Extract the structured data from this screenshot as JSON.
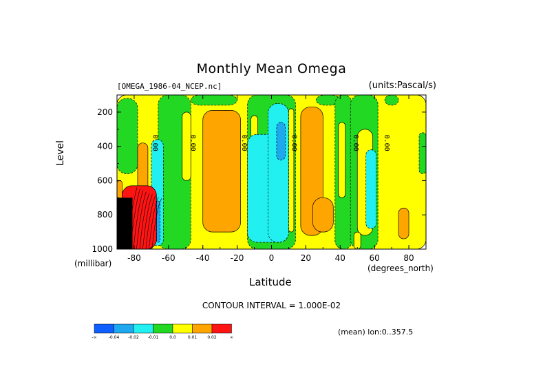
{
  "chart_data": {
    "type": "heatmap",
    "title": "Monthly Mean Omega",
    "file_label": "[OMEGA_1986-04_NCEP.nc]",
    "units_label": "(units:Pascal/s)",
    "xlabel": "Latitude",
    "x_unit_label": "(degrees_north)",
    "ylabel": "Level",
    "y_unit_label": "(millibar)",
    "x_ticks": [
      "-80",
      "-60",
      "-40",
      "-20",
      "0",
      "20",
      "40",
      "60",
      "80"
    ],
    "x_tick_values": [
      -80,
      -60,
      -40,
      -20,
      0,
      20,
      40,
      60,
      80
    ],
    "y_ticks": [
      "200",
      "400",
      "600",
      "800",
      "1000"
    ],
    "y_tick_values": [
      200,
      400,
      600,
      800,
      1000
    ],
    "xlim": [
      -90,
      90
    ],
    "ylim": [
      1000,
      100
    ],
    "y_reversed": true,
    "contour_interval_label": "CONTOUR INTERVAL = 1.000E-02",
    "mean_label": "(mean) lon:0..357.5",
    "contour_labels": [
      "0.00",
      "0.00",
      "0.00",
      "0.00",
      "0.00",
      "0.00"
    ],
    "colorbar": {
      "colors": [
        "#0f5fff",
        "#1ea8f0",
        "#22f0f0",
        "#22d822",
        "#ffff00",
        "#ffa500",
        "#ff1414"
      ],
      "labels": [
        "-∞",
        "-0.04",
        "-0.02",
        "-0.01",
        "0.0",
        "0.01",
        "0.02",
        "∞"
      ]
    },
    "regions": [
      {
        "category": 4,
        "lat": [
          -90,
          90
        ],
        "lev": [
          1000,
          100
        ]
      },
      {
        "category": 3,
        "lat": [
          -66,
          -47
        ],
        "lev": [
          1000,
          100
        ]
      },
      {
        "category": 3,
        "lat": [
          -90,
          -78
        ],
        "lev": [
          560,
          120
        ]
      },
      {
        "category": 3,
        "lat": [
          -47,
          -20
        ],
        "lev": [
          160,
          100
        ]
      },
      {
        "category": 3,
        "lat": [
          -14,
          14
        ],
        "lev": [
          1000,
          100
        ]
      },
      {
        "category": 3,
        "lat": [
          26,
          40
        ],
        "lev": [
          160,
          100
        ]
      },
      {
        "category": 3,
        "lat": [
          37,
          47
        ],
        "lev": [
          1000,
          100
        ]
      },
      {
        "category": 3,
        "lat": [
          46,
          62
        ],
        "lev": [
          1000,
          100
        ]
      },
      {
        "category": 3,
        "lat": [
          66,
          74
        ],
        "lev": [
          160,
          100
        ]
      },
      {
        "category": 3,
        "lat": [
          86,
          90
        ],
        "lev": [
          560,
          320
        ]
      },
      {
        "category": 4,
        "lat": [
          -52,
          -47
        ],
        "lev": [
          600,
          200
        ]
      },
      {
        "category": 4,
        "lat": [
          -12,
          -8
        ],
        "lev": [
          950,
          220
        ]
      },
      {
        "category": 4,
        "lat": [
          10,
          13
        ],
        "lev": [
          900,
          180
        ]
      },
      {
        "category": 4,
        "lat": [
          39,
          43
        ],
        "lev": [
          700,
          260
        ]
      },
      {
        "category": 4,
        "lat": [
          50,
          59
        ],
        "lev": [
          920,
          300
        ]
      },
      {
        "category": 4,
        "lat": [
          48,
          52
        ],
        "lev": [
          1000,
          900
        ]
      },
      {
        "category": 5,
        "lat": [
          -78,
          -72
        ],
        "lev": [
          920,
          380
        ]
      },
      {
        "category": 5,
        "lat": [
          -40,
          -18
        ],
        "lev": [
          900,
          190
        ]
      },
      {
        "category": 5,
        "lat": [
          17,
          30
        ],
        "lev": [
          920,
          170
        ]
      },
      {
        "category": 5,
        "lat": [
          24,
          36
        ],
        "lev": [
          900,
          700
        ]
      },
      {
        "category": 5,
        "lat": [
          74,
          80
        ],
        "lev": [
          940,
          760
        ]
      },
      {
        "category": 2,
        "lat": [
          -70,
          -63
        ],
        "lev": [
          980,
          360
        ]
      },
      {
        "category": 2,
        "lat": [
          -14,
          10
        ],
        "lev": [
          960,
          330
        ]
      },
      {
        "category": 2,
        "lat": [
          -2,
          10
        ],
        "lev": [
          960,
          150
        ]
      },
      {
        "category": 2,
        "lat": [
          55,
          61
        ],
        "lev": [
          880,
          420
        ]
      },
      {
        "category": 1,
        "lat": [
          3,
          8
        ],
        "lev": [
          480,
          260
        ]
      },
      {
        "category": 1,
        "lat": [
          -67,
          -65
        ],
        "lev": [
          960,
          720
        ]
      },
      {
        "category": 6,
        "lat": [
          -87,
          -67
        ],
        "lev": [
          1000,
          630
        ]
      },
      {
        "category": 5,
        "lat": [
          -90,
          -87
        ],
        "lev": [
          900,
          600
        ]
      },
      {
        "category": 99,
        "lat": [
          -90,
          -81
        ],
        "lev": [
          1000,
          700
        ]
      }
    ]
  }
}
